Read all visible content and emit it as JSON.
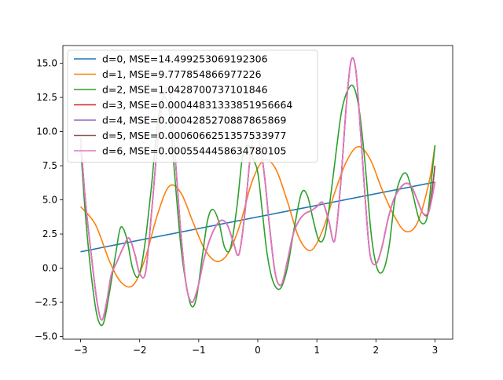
{
  "chart_data": {
    "type": "line",
    "title": "",
    "xlabel": "",
    "ylabel": "",
    "xlim": [
      -3.3,
      3.3
    ],
    "ylim": [
      -5.2,
      16.3
    ],
    "x_ticks": [
      -3,
      -2,
      -1,
      0,
      1,
      2,
      3
    ],
    "x_tick_labels": [
      "−3",
      "−2",
      "−1",
      "0",
      "1",
      "2",
      "3"
    ],
    "y_ticks": [
      -5.0,
      -2.5,
      0.0,
      2.5,
      5.0,
      7.5,
      10.0,
      12.5,
      15.0
    ],
    "y_tick_labels": [
      "−5.0",
      "−2.5",
      "0.0",
      "2.5",
      "5.0",
      "7.5",
      "10.0",
      "12.5",
      "15.0"
    ],
    "grid": false,
    "legend_position": "top-left",
    "series": [
      {
        "name": "d=0, MSE=14.499253069192306",
        "color": "#1f77b4",
        "x": [
          -3,
          3
        ],
        "y": [
          1.2,
          6.3
        ]
      },
      {
        "name": "d=1, MSE=9.777854866977226",
        "color": "#ff7f0e",
        "x": [
          -3.0,
          -2.75,
          -2.5,
          -2.3,
          -2.1,
          -1.9,
          -1.7,
          -1.5,
          -1.3,
          -1.1,
          -0.9,
          -0.7,
          -0.5,
          -0.3,
          -0.1,
          0.1,
          0.3,
          0.5,
          0.7,
          0.9,
          1.1,
          1.3,
          1.5,
          1.7,
          1.9,
          2.1,
          2.3,
          2.5,
          2.7,
          2.9,
          3.0
        ],
        "y": [
          4.5,
          3.2,
          0.4,
          -1.1,
          -1.2,
          0.8,
          3.9,
          6.0,
          5.5,
          3.4,
          1.4,
          0.5,
          1.1,
          3.2,
          6.3,
          7.9,
          7.3,
          4.9,
          2.2,
          1.3,
          2.8,
          5.5,
          7.8,
          8.9,
          8.0,
          5.8,
          3.9,
          2.7,
          3.3,
          6.3,
          9.0
        ]
      },
      {
        "name": "d=2, MSE=1.0428700737101846",
        "color": "#2ca02c",
        "x": [
          -3.0,
          -2.92,
          -2.82,
          -2.72,
          -2.62,
          -2.52,
          -2.4,
          -2.32,
          -2.22,
          -2.12,
          -2.02,
          -1.92,
          -1.8,
          -1.7,
          -1.6,
          -1.5,
          -1.42,
          -1.3,
          -1.2,
          -1.12,
          -1.04,
          -0.95,
          -0.85,
          -0.76,
          -0.66,
          -0.56,
          -0.46,
          -0.35,
          -0.26,
          -0.16,
          -0.08,
          0.0,
          0.08,
          0.16,
          0.26,
          0.38,
          0.5,
          0.62,
          0.74,
          0.84,
          0.94,
          1.04,
          1.14,
          1.24,
          1.34,
          1.42,
          1.52,
          1.62,
          1.72,
          1.82,
          1.92,
          2.02,
          2.12,
          2.22,
          2.32,
          2.42,
          2.52,
          2.62,
          2.74,
          2.86,
          2.94,
          3.0
        ],
        "y": [
          9.0,
          4.0,
          -0.5,
          -3.5,
          -4.1,
          -2.0,
          1.2,
          3.0,
          2.2,
          0.0,
          -0.6,
          1.5,
          6.0,
          10.5,
          12.5,
          11.5,
          7.5,
          1.5,
          -1.5,
          -2.8,
          -2.2,
          0.5,
          3.5,
          4.3,
          3.4,
          1.5,
          1.5,
          4.6,
          8.1,
          9.0,
          8.0,
          7.0,
          4.0,
          1.0,
          -1.0,
          -1.5,
          0.0,
          3.0,
          5.5,
          5.3,
          3.5,
          2.0,
          2.5,
          5.5,
          9.0,
          11.5,
          13.0,
          13.3,
          11.5,
          7.5,
          2.5,
          0.0,
          -0.2,
          1.5,
          5.0,
          6.6,
          6.9,
          5.5,
          3.5,
          3.6,
          6.5,
          9.0
        ]
      },
      {
        "name": "d=3, MSE=0.00044831333851956664",
        "color": "#d62728",
        "x": [
          -3.0,
          -2.92,
          -2.82,
          -2.72,
          -2.64,
          -2.56,
          -2.48,
          -2.38,
          -2.28,
          -2.18,
          -2.08,
          -2.0,
          -1.9,
          -1.8,
          -1.7,
          -1.6,
          -1.5,
          -1.42,
          -1.32,
          -1.22,
          -1.12,
          -1.02,
          -0.92,
          -0.82,
          -0.72,
          -0.62,
          -0.52,
          -0.42,
          -0.32,
          -0.22,
          -0.12,
          -0.04,
          0.04,
          0.12,
          0.2,
          0.3,
          0.4,
          0.5,
          0.6,
          0.7,
          0.8,
          0.9,
          1.0,
          1.1,
          1.2,
          1.3,
          1.4,
          1.5,
          1.58,
          1.66,
          1.74,
          1.82,
          1.9,
          2.0,
          2.1,
          2.2,
          2.3,
          2.4,
          2.5,
          2.6,
          2.7,
          2.8,
          2.9,
          3.0
        ],
        "y": [
          9.5,
          5.0,
          1.0,
          -2.5,
          -3.8,
          -2.5,
          -0.5,
          0.5,
          1.5,
          2.2,
          1.0,
          -0.4,
          -0.3,
          4.0,
          9.0,
          12.5,
          13.0,
          9.5,
          3.5,
          -1.0,
          -2.5,
          -1.5,
          0.5,
          2.0,
          3.0,
          3.5,
          3.2,
          2.0,
          1.0,
          4.0,
          8.5,
          10.0,
          9.0,
          6.5,
          3.0,
          -0.5,
          -1.2,
          0.5,
          2.5,
          3.5,
          4.0,
          4.2,
          4.5,
          4.8,
          3.5,
          2.0,
          6.0,
          12.0,
          15.2,
          14.5,
          10.0,
          5.0,
          1.0,
          0.3,
          1.5,
          3.5,
          5.0,
          5.8,
          6.2,
          6.0,
          5.0,
          4.0,
          4.2,
          7.5
        ]
      },
      {
        "name": "d=4, MSE=0.0004285270887865869",
        "color": "#9467bd",
        "x": [
          -3.0,
          -2.92,
          -2.82,
          -2.72,
          -2.64,
          -2.56,
          -2.48,
          -2.38,
          -2.28,
          -2.18,
          -2.08,
          -2.0,
          -1.9,
          -1.8,
          -1.7,
          -1.6,
          -1.5,
          -1.42,
          -1.32,
          -1.22,
          -1.12,
          -1.02,
          -0.92,
          -0.82,
          -0.72,
          -0.62,
          -0.52,
          -0.42,
          -0.32,
          -0.22,
          -0.12,
          -0.04,
          0.04,
          0.12,
          0.2,
          0.3,
          0.4,
          0.5,
          0.6,
          0.7,
          0.8,
          0.9,
          1.0,
          1.1,
          1.2,
          1.3,
          1.4,
          1.5,
          1.58,
          1.66,
          1.74,
          1.82,
          1.9,
          2.0,
          2.1,
          2.2,
          2.3,
          2.4,
          2.5,
          2.6,
          2.7,
          2.8,
          2.9,
          3.0
        ],
        "y": [
          9.5,
          5.0,
          1.0,
          -2.5,
          -3.8,
          -2.5,
          -0.5,
          0.5,
          1.5,
          2.2,
          1.0,
          -0.4,
          -0.3,
          4.0,
          9.0,
          12.5,
          13.0,
          9.5,
          3.5,
          -1.0,
          -2.5,
          -1.5,
          0.5,
          2.0,
          3.0,
          3.5,
          3.2,
          2.0,
          1.0,
          4.0,
          8.5,
          10.0,
          9.0,
          6.5,
          3.0,
          -0.5,
          -1.2,
          0.5,
          2.5,
          3.5,
          4.0,
          4.2,
          4.5,
          4.8,
          3.5,
          2.0,
          6.0,
          12.0,
          15.2,
          14.5,
          10.0,
          5.0,
          1.0,
          0.3,
          1.5,
          3.5,
          5.0,
          5.8,
          6.2,
          6.0,
          5.0,
          4.0,
          4.2,
          6.3
        ]
      },
      {
        "name": "d=5, MSE=0.0006066251357533977",
        "color": "#8c564b",
        "x": [
          -3.0,
          -2.92,
          -2.82,
          -2.72,
          -2.64,
          -2.56,
          -2.48,
          -2.38,
          -2.28,
          -2.18,
          -2.08,
          -2.0,
          -1.9,
          -1.8,
          -1.7,
          -1.6,
          -1.5,
          -1.42,
          -1.32,
          -1.22,
          -1.12,
          -1.02,
          -0.92,
          -0.82,
          -0.72,
          -0.62,
          -0.52,
          -0.42,
          -0.32,
          -0.22,
          -0.12,
          -0.04,
          0.04,
          0.12,
          0.2,
          0.3,
          0.4,
          0.5,
          0.6,
          0.7,
          0.8,
          0.9,
          1.0,
          1.1,
          1.2,
          1.3,
          1.4,
          1.5,
          1.58,
          1.66,
          1.74,
          1.82,
          1.9,
          2.0,
          2.1,
          2.2,
          2.3,
          2.4,
          2.5,
          2.6,
          2.7,
          2.8,
          2.9,
          3.0
        ],
        "y": [
          9.5,
          5.0,
          1.0,
          -2.5,
          -3.8,
          -2.5,
          -0.5,
          0.5,
          1.5,
          2.2,
          1.0,
          -0.4,
          -0.3,
          4.0,
          9.0,
          12.5,
          13.0,
          9.5,
          3.5,
          -1.0,
          -2.5,
          -1.5,
          0.5,
          2.0,
          3.0,
          3.5,
          3.2,
          2.0,
          1.0,
          4.0,
          8.5,
          10.0,
          9.0,
          6.5,
          3.0,
          -0.5,
          -1.2,
          0.5,
          2.5,
          3.5,
          4.0,
          4.2,
          4.5,
          4.8,
          3.5,
          2.0,
          6.0,
          12.0,
          15.2,
          14.5,
          10.0,
          5.0,
          1.0,
          0.3,
          1.5,
          3.5,
          5.0,
          5.8,
          6.2,
          6.0,
          5.0,
          4.0,
          4.2,
          7.5
        ]
      },
      {
        "name": "d=6, MSE=0.0005544458634780105",
        "color": "#e377c2",
        "x": [
          -3.0,
          -2.92,
          -2.82,
          -2.72,
          -2.64,
          -2.56,
          -2.48,
          -2.38,
          -2.28,
          -2.18,
          -2.08,
          -2.0,
          -1.9,
          -1.8,
          -1.7,
          -1.6,
          -1.5,
          -1.42,
          -1.32,
          -1.22,
          -1.12,
          -1.02,
          -0.92,
          -0.82,
          -0.72,
          -0.62,
          -0.52,
          -0.42,
          -0.32,
          -0.22,
          -0.12,
          -0.04,
          0.04,
          0.12,
          0.2,
          0.3,
          0.4,
          0.5,
          0.6,
          0.7,
          0.8,
          0.9,
          1.0,
          1.1,
          1.2,
          1.3,
          1.4,
          1.5,
          1.58,
          1.66,
          1.74,
          1.82,
          1.9,
          2.0,
          2.1,
          2.2,
          2.3,
          2.4,
          2.5,
          2.6,
          2.7,
          2.8,
          2.9,
          3.0
        ],
        "y": [
          9.5,
          5.0,
          1.0,
          -2.5,
          -3.8,
          -2.5,
          -0.5,
          0.5,
          1.5,
          2.2,
          1.0,
          -0.4,
          -0.3,
          4.0,
          9.0,
          12.5,
          13.0,
          9.5,
          3.5,
          -1.0,
          -2.5,
          -1.5,
          0.5,
          2.0,
          3.0,
          3.5,
          3.2,
          2.0,
          1.0,
          4.0,
          8.5,
          10.0,
          9.0,
          6.5,
          3.0,
          -0.5,
          -1.2,
          0.5,
          2.5,
          3.5,
          4.0,
          4.2,
          4.5,
          4.8,
          3.5,
          2.0,
          6.0,
          12.0,
          15.2,
          14.5,
          10.0,
          5.0,
          1.0,
          0.3,
          1.5,
          3.5,
          5.0,
          5.8,
          6.2,
          6.0,
          5.0,
          4.0,
          4.2,
          6.3
        ]
      }
    ]
  }
}
